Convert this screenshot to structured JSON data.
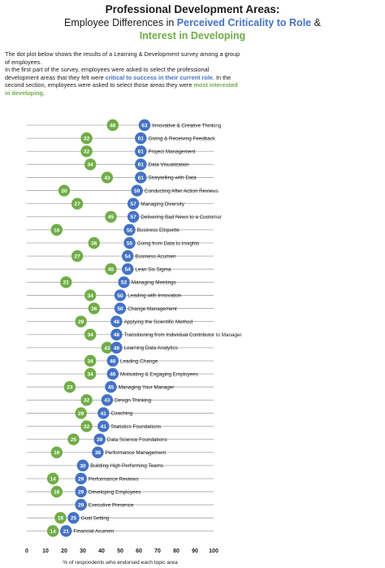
{
  "title": {
    "line1": "Professional Development Areas:",
    "line2_parts": [
      "Employee Differences in ",
      "Perceived Criticality to Role",
      " &"
    ],
    "line3": "Interest in Developing"
  },
  "intro": {
    "p1": "The dot plot below shows the results of a Learning & Development survey among a group of employees.",
    "p2_parts": [
      "In the first part of the survey, employees were asked to select the professional development areas that they felt were ",
      "critical to success in their current role",
      ".  In the second section, employees were asked to select those areas they were ",
      "most interested in developing",
      "."
    ]
  },
  "colors": {
    "critical": "#4472c4",
    "interest": "#70ad47",
    "line": "#a6a6a6",
    "text": "#1a1a1a"
  },
  "chart_data": {
    "type": "scatter",
    "subtype": "dot-plot",
    "xlabel": "% of respondents who endorsed each topic area",
    "xlim": [
      0,
      100
    ],
    "xticks": [
      0,
      10,
      20,
      30,
      40,
      50,
      60,
      70,
      80,
      90,
      100
    ],
    "series_keys": [
      "critical",
      "interest"
    ],
    "rows": [
      {
        "topic": "Innovative & Creative Thinking",
        "critical": 63,
        "interest": 46
      },
      {
        "topic": "Giving & Receiving Feedback",
        "critical": 61,
        "interest": 32
      },
      {
        "topic": "Project Management",
        "critical": 61,
        "interest": 32
      },
      {
        "topic": "Data Visualization",
        "critical": 61,
        "interest": 34
      },
      {
        "topic": "Storytelling with Data",
        "critical": 61,
        "interest": 43
      },
      {
        "topic": "Conducting After Action Reviews",
        "critical": 59,
        "interest": 20
      },
      {
        "topic": "Managing Diversity",
        "critical": 57,
        "interest": 27
      },
      {
        "topic": "Delivering Bad News to a Customer",
        "critical": 57,
        "interest": 45
      },
      {
        "topic": "Business Etiquette",
        "critical": 55,
        "interest": 16
      },
      {
        "topic": "Going from Data to Insights",
        "critical": 55,
        "interest": 36
      },
      {
        "topic": "Business Acumen",
        "critical": 54,
        "interest": 27
      },
      {
        "topic": "Lean Six Sigma",
        "critical": 54,
        "interest": 45
      },
      {
        "topic": "Managing Meetings",
        "critical": 52,
        "interest": 21
      },
      {
        "topic": "Leading with Innovation",
        "critical": 50,
        "interest": 34
      },
      {
        "topic": "Change Management",
        "critical": 50,
        "interest": 36
      },
      {
        "topic": "Applying the Scientific Method",
        "critical": 48,
        "interest": 29
      },
      {
        "topic": "Transitioning from Individual Contributor to Manager",
        "critical": 48,
        "interest": 34
      },
      {
        "topic": "Learning Data Analytics",
        "critical": 48,
        "interest": 43
      },
      {
        "topic": "Leading Change",
        "critical": 46,
        "interest": 34
      },
      {
        "topic": "Motivating & Engaging Employees",
        "critical": 46,
        "interest": 34
      },
      {
        "topic": "Managing Your Manager",
        "critical": 45,
        "interest": 23
      },
      {
        "topic": "Design Thinking",
        "critical": 43,
        "interest": 32
      },
      {
        "topic": "Coaching",
        "critical": 41,
        "interest": 29
      },
      {
        "topic": "Statistics Foundations",
        "critical": 41,
        "interest": 32
      },
      {
        "topic": "Data Science Foundations",
        "critical": 39,
        "interest": 25
      },
      {
        "topic": "Performance Management",
        "critical": 38,
        "interest": 16
      },
      {
        "topic": "Building High Performing Teams",
        "critical": 30,
        "interest": 30
      },
      {
        "topic": "Performance Reviews",
        "critical": 29,
        "interest": 14
      },
      {
        "topic": "Developing Employees",
        "critical": 29,
        "interest": 16
      },
      {
        "topic": "Executive Presence",
        "critical": 29,
        "interest": 29
      },
      {
        "topic": "Goal Setting",
        "critical": 25,
        "interest": 18
      },
      {
        "topic": "Financial Acumen",
        "critical": 21,
        "interest": 14
      }
    ]
  }
}
